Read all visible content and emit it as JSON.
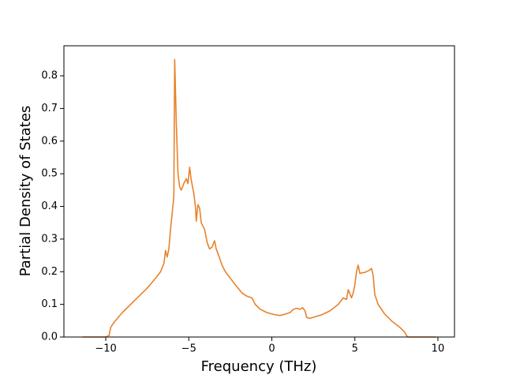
{
  "chart_data": {
    "type": "line",
    "x_label": "Frequency (THz)",
    "y_label": "Partial Density of States",
    "xlim": [
      -12.52,
      11.0
    ],
    "ylim": [
      0,
      0.892
    ],
    "xticks": [
      {
        "value": -10,
        "label": "−10"
      },
      {
        "value": -5,
        "label": "−5"
      },
      0,
      5,
      10
    ],
    "yticks": [
      {
        "value": 0,
        "label": "0.0"
      },
      0.1,
      0.2,
      0.3,
      0.4,
      0.5,
      0.6,
      0.7,
      0.8
    ],
    "series": [
      {
        "color": "#e8822a",
        "x": [
          -11.4,
          -10.0,
          -9.8,
          -9.7,
          -9.5,
          -9,
          -8.5,
          -8,
          -7.5,
          -7,
          -6.7,
          -6.5,
          -6.4,
          -6.3,
          -6.2,
          -6.1,
          -6.0,
          -5.9,
          -5.85,
          -5.75,
          -5.65,
          -5.55,
          -5.45,
          -5.3,
          -5.15,
          -5.05,
          -4.95,
          -4.85,
          -4.7,
          -4.6,
          -4.55,
          -4.45,
          -4.35,
          -4.25,
          -4.05,
          -3.9,
          -3.75,
          -3.6,
          -3.45,
          -3.35,
          -3.2,
          -3.0,
          -2.8,
          -2.5,
          -2.2,
          -1.8,
          -1.5,
          -1.2,
          -1.0,
          -0.7,
          -0.3,
          0.2,
          0.5,
          0.8,
          1.1,
          1.3,
          1.5,
          1.7,
          1.85,
          2.0,
          2.1,
          2.3,
          2.6,
          3.0,
          3.5,
          4.0,
          4.3,
          4.5,
          4.6,
          4.8,
          4.9,
          5.0,
          5.1,
          5.2,
          5.3,
          5.6,
          5.9,
          6.0,
          6.1,
          6.2,
          6.4,
          6.8,
          7.2,
          7.7,
          8.0,
          8.1,
          8.2,
          9.9
        ],
        "values": [
          0,
          0,
          0.005,
          0.03,
          0.045,
          0.075,
          0.1,
          0.125,
          0.15,
          0.18,
          0.2,
          0.225,
          0.265,
          0.245,
          0.27,
          0.33,
          0.38,
          0.43,
          0.85,
          0.65,
          0.5,
          0.46,
          0.45,
          0.47,
          0.485,
          0.47,
          0.52,
          0.48,
          0.44,
          0.4,
          0.355,
          0.405,
          0.395,
          0.35,
          0.33,
          0.29,
          0.27,
          0.275,
          0.295,
          0.27,
          0.25,
          0.22,
          0.2,
          0.18,
          0.16,
          0.135,
          0.125,
          0.12,
          0.1,
          0.085,
          0.075,
          0.068,
          0.066,
          0.07,
          0.075,
          0.085,
          0.088,
          0.085,
          0.09,
          0.08,
          0.06,
          0.057,
          0.062,
          0.068,
          0.08,
          0.1,
          0.12,
          0.115,
          0.145,
          0.12,
          0.135,
          0.16,
          0.2,
          0.22,
          0.195,
          0.198,
          0.205,
          0.21,
          0.19,
          0.13,
          0.1,
          0.07,
          0.05,
          0.03,
          0.015,
          0.005,
          0,
          0
        ]
      }
    ]
  }
}
